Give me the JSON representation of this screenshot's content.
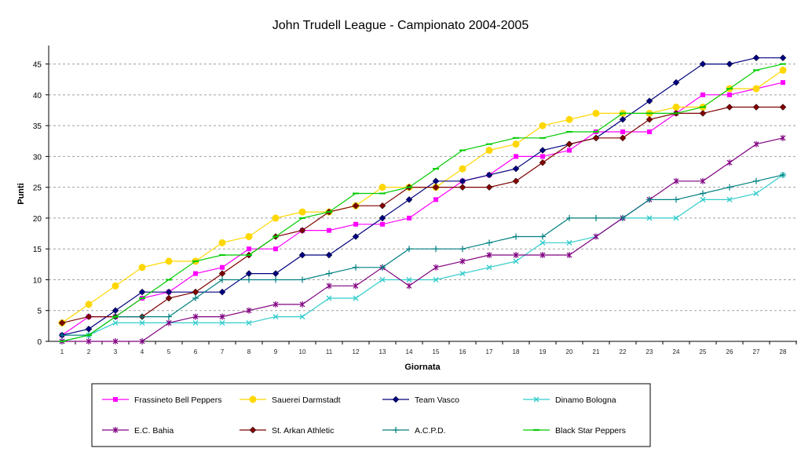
{
  "chart_data": {
    "type": "line",
    "title": "John Trudell League - Campionato 2004-2005",
    "xlabel": "Giornata",
    "ylabel": "Punti",
    "ylim": [
      0,
      48
    ],
    "yticks": [
      0,
      5,
      10,
      15,
      20,
      25,
      30,
      35,
      40,
      45
    ],
    "grid": "horizontal-dashed",
    "legend_position": "bottom",
    "x": [
      1,
      2,
      3,
      4,
      5,
      6,
      7,
      8,
      9,
      10,
      11,
      12,
      13,
      14,
      15,
      16,
      17,
      18,
      19,
      20,
      21,
      22,
      23,
      24,
      25,
      26,
      27,
      28
    ],
    "series": [
      {
        "name": "Frassineto Bell Peppers",
        "color": "#ff00ff",
        "marker": "square",
        "values": [
          1,
          4,
          4,
          7,
          8,
          11,
          12,
          15,
          15,
          18,
          18,
          19,
          19,
          20,
          23,
          26,
          27,
          30,
          30,
          31,
          34,
          34,
          34,
          37,
          40,
          40,
          41,
          42
        ]
      },
      {
        "name": "Sauerei Darmstadt",
        "color": "#ffd700",
        "marker": "circle",
        "values": [
          3,
          6,
          9,
          12,
          13,
          13,
          16,
          17,
          20,
          21,
          21,
          22,
          25,
          25,
          25,
          28,
          31,
          32,
          35,
          36,
          37,
          37,
          37,
          38,
          38,
          41,
          41,
          44
        ]
      },
      {
        "name": "Team Vasco",
        "color": "#000080",
        "marker": "diamond",
        "values": [
          1,
          2,
          5,
          8,
          8,
          8,
          8,
          11,
          11,
          14,
          14,
          17,
          20,
          23,
          26,
          26,
          27,
          28,
          31,
          32,
          33,
          36,
          39,
          42,
          45,
          45,
          46,
          46
        ]
      },
      {
        "name": "Dinamo Bologna",
        "color": "#33cccc",
        "marker": "x",
        "values": [
          0,
          1,
          3,
          3,
          3,
          3,
          3,
          3,
          4,
          4,
          7,
          7,
          10,
          10,
          10,
          11,
          12,
          13,
          16,
          16,
          17,
          20,
          20,
          20,
          23,
          23,
          24,
          27
        ]
      },
      {
        "name": "E.C. Bahia",
        "color": "#800080",
        "marker": "asterisk",
        "values": [
          0,
          0,
          0,
          0,
          3,
          4,
          4,
          5,
          6,
          6,
          9,
          9,
          12,
          9,
          12,
          13,
          14,
          14,
          14,
          14,
          17,
          20,
          23,
          26,
          26,
          29,
          32,
          33
        ]
      },
      {
        "name": "St. Arkan Athletic",
        "color": "#800000",
        "marker": "diamond",
        "values": [
          3,
          4,
          4,
          4,
          7,
          8,
          11,
          14,
          17,
          18,
          21,
          22,
          22,
          25,
          25,
          25,
          25,
          26,
          29,
          32,
          33,
          33,
          36,
          37,
          37,
          38,
          38,
          38
        ]
      },
      {
        "name": "A.C.P.D.",
        "color": "#008080",
        "marker": "plus",
        "values": [
          1,
          1,
          4,
          4,
          4,
          7,
          10,
          10,
          10,
          10,
          11,
          12,
          12,
          15,
          15,
          15,
          16,
          17,
          17,
          20,
          20,
          20,
          23,
          23,
          24,
          25,
          26,
          27
        ]
      },
      {
        "name": "Black Star Peppers",
        "color": "#00cc00",
        "marker": "dash",
        "values": [
          0,
          1,
          4,
          7,
          10,
          13,
          14,
          14,
          17,
          20,
          21,
          24,
          24,
          25,
          28,
          31,
          32,
          33,
          33,
          34,
          34,
          37,
          37,
          37,
          38,
          41,
          44,
          45
        ]
      }
    ]
  }
}
